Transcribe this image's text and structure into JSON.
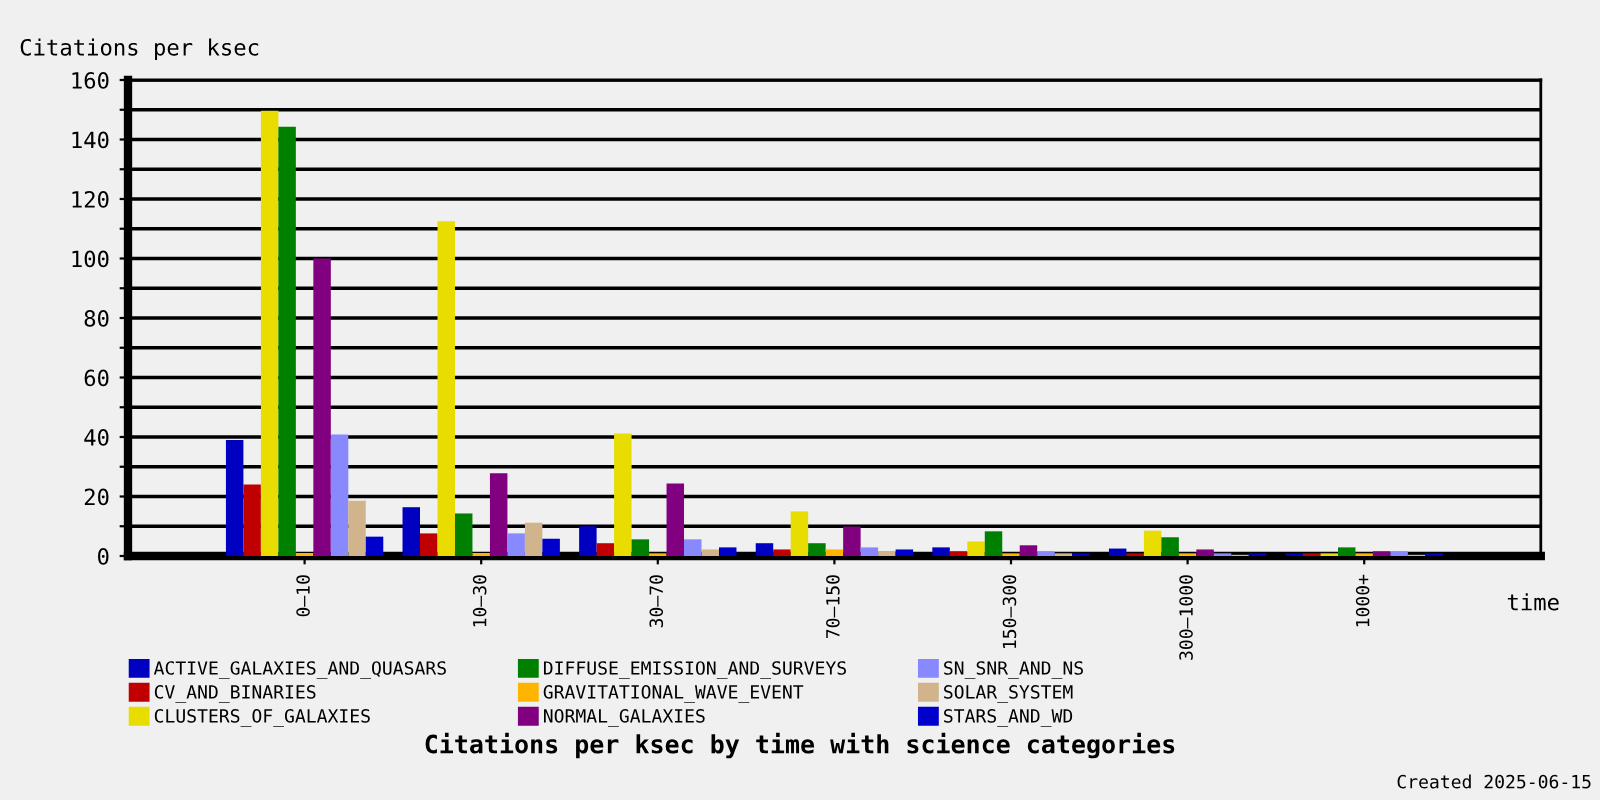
{
  "chart_data": {
    "type": "bar",
    "title": "Citations per ksec by time with science categories",
    "ylabel": "Citations per ksec",
    "xlabel": "time",
    "annotations": [
      "Created 2025-06-15"
    ],
    "categories": [
      "0–10",
      "10–30",
      "30–70",
      "70–150",
      "150–300",
      "300–1000",
      "1000+"
    ],
    "series": [
      {
        "name": "ACTIVE_GALAXIES_AND_QUASARS",
        "color": "#0000c0",
        "values": [
          39,
          16.4,
          10,
          4.3,
          2.9,
          2.5,
          0.9
        ]
      },
      {
        "name": "CV_AND_BINARIES",
        "color": "#c00000",
        "values": [
          24,
          7.6,
          4.3,
          2.2,
          1.6,
          0.9,
          0.9
        ]
      },
      {
        "name": "CLUSTERS_OF_GALAXIES",
        "color": "#e8dc00",
        "values": [
          149.7,
          112.5,
          41.2,
          15,
          4.9,
          8.5,
          0.9
        ]
      },
      {
        "name": "DIFFUSE_EMISSION_AND_SURVEYS",
        "color": "#008000",
        "values": [
          144.3,
          14.3,
          5.6,
          4.3,
          8.3,
          6.3,
          2.9
        ]
      },
      {
        "name": "GRAVITATIONAL_WAVE_EVENT",
        "color": "#ffb400",
        "values": [
          1,
          1,
          0.9,
          2.2,
          0.9,
          0.9,
          0.9
        ]
      },
      {
        "name": "NORMAL_GALAXIES",
        "color": "#800080",
        "values": [
          100,
          27.8,
          24.4,
          9.9,
          3.6,
          2.2,
          1.6
        ]
      },
      {
        "name": "SN_SNR_AND_NS",
        "color": "#8888ff",
        "values": [
          40.8,
          7.6,
          5.6,
          2.9,
          1.6,
          0.9,
          1.6
        ]
      },
      {
        "name": "SOLAR_SYSTEM",
        "color": "#d2b48c",
        "values": [
          18.6,
          11.2,
          2.2,
          1.6,
          0.9,
          0.4,
          0.4
        ]
      },
      {
        "name": "STARS_AND_WD",
        "color": "#0000cc",
        "values": [
          6.5,
          5.8,
          2.9,
          2.2,
          0.9,
          0.9,
          0.9
        ]
      }
    ],
    "ylim": [
      0,
      160
    ],
    "yticks": [
      0,
      {
        "value": 10,
        "label": null
      },
      20,
      {
        "value": 30,
        "label": null
      },
      40,
      {
        "value": 50,
        "label": null
      },
      60,
      {
        "value": 70,
        "label": null
      },
      80,
      {
        "value": 90,
        "label": null
      },
      100,
      {
        "value": 110,
        "label": null
      },
      120,
      {
        "value": 130,
        "label": null
      },
      140,
      {
        "value": 150,
        "label": null
      },
      160
    ],
    "grid": "y",
    "legend": "bottom"
  }
}
